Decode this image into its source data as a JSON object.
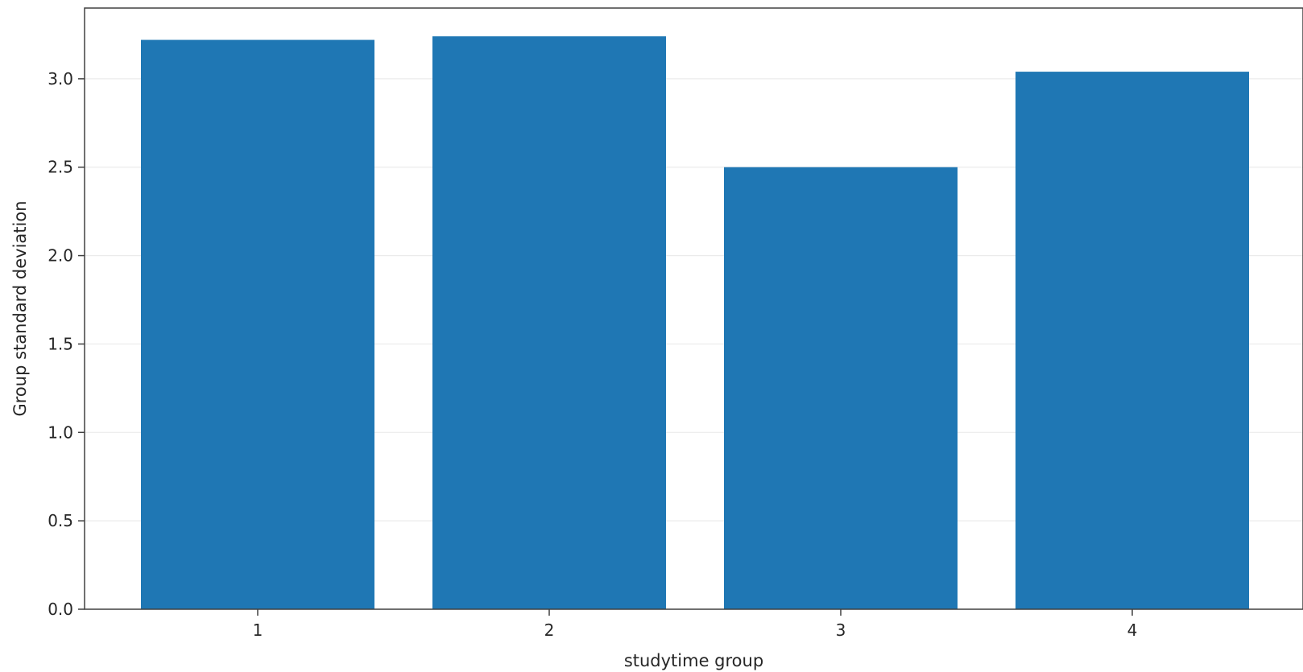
{
  "chart_data": {
    "type": "bar",
    "categories": [
      "1",
      "2",
      "3",
      "4"
    ],
    "values": [
      3.22,
      3.24,
      2.5,
      3.04
    ],
    "xlabel": "studytime group",
    "ylabel": "Group standard deviation",
    "ylim": [
      0,
      3.4
    ],
    "yticks": [
      0.0,
      0.5,
      1.0,
      1.5,
      2.0,
      2.5,
      3.0
    ],
    "ytick_labels": [
      "0.0",
      "0.5",
      "1.0",
      "1.5",
      "2.0",
      "2.5",
      "3.0"
    ],
    "grid": "y",
    "bar_color": "#1f77b4",
    "grid_color": "#ebebeb",
    "axis_color": "#404040"
  }
}
